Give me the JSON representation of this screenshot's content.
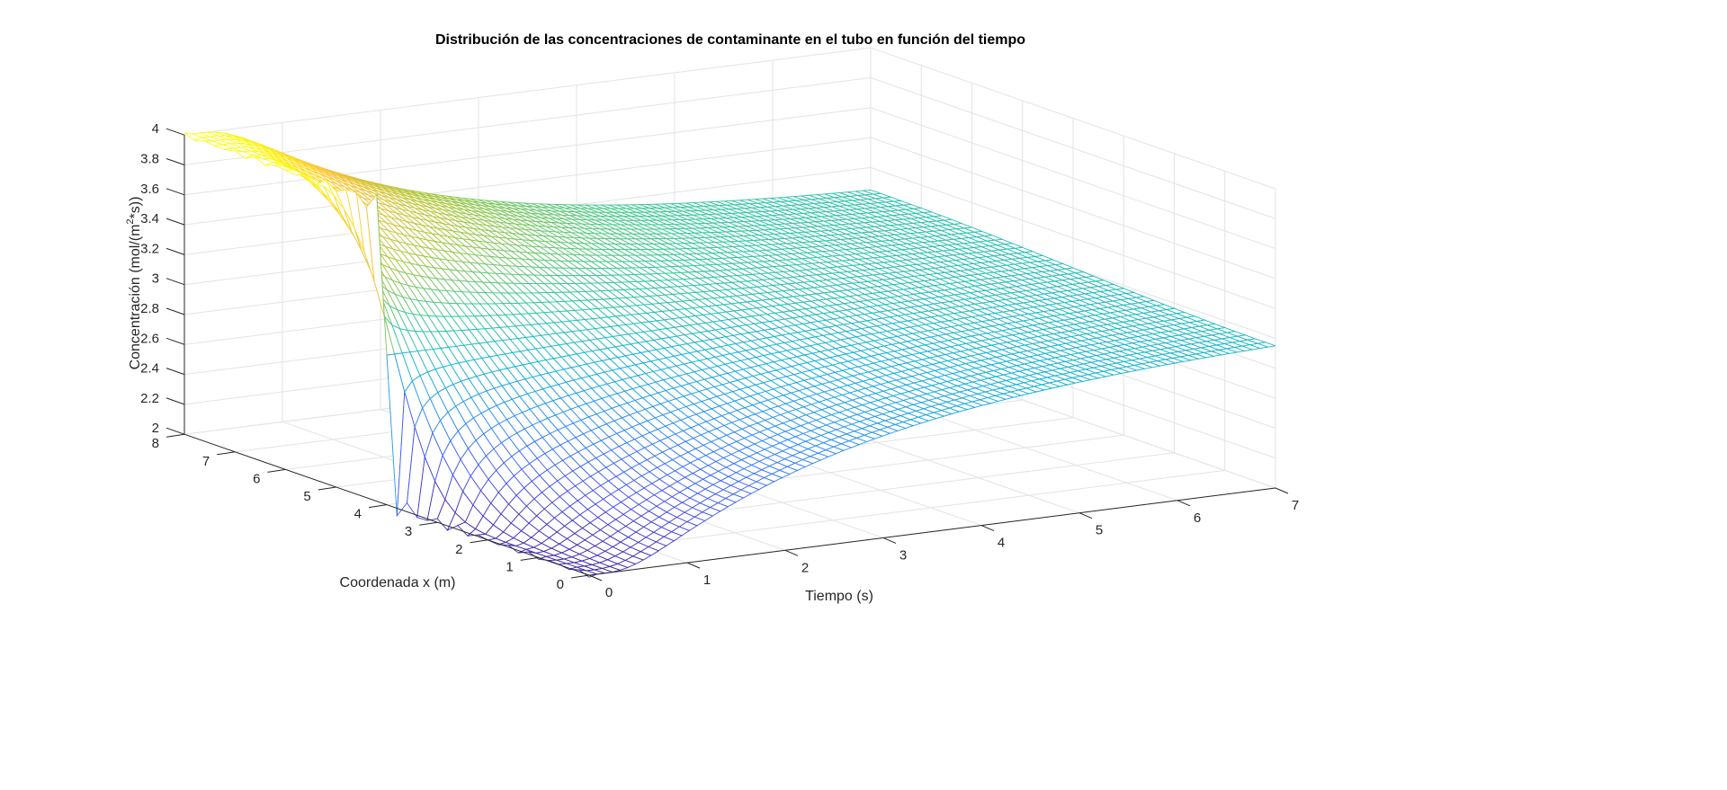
{
  "chart_data": {
    "type": "mesh",
    "title": "Distribución de las concentraciones de contaminante en el tubo en función del tiempo",
    "xlabel": "Tiempo (s)",
    "ylabel": "Coordenada x (m)",
    "zlabel": "Concentración (mol/(m²*s))",
    "zlabel_base": "Concentración (mol/(m",
    "zlabel_sup": "2",
    "zlabel_end": "*s))",
    "t_lim": [
      0,
      7
    ],
    "x_lim": [
      0,
      8
    ],
    "z_lim": [
      2,
      4
    ],
    "t_ticks": [
      "0",
      "1",
      "2",
      "3",
      "4",
      "5",
      "6",
      "7"
    ],
    "x_ticks": [
      "0",
      "1",
      "2",
      "3",
      "4",
      "5",
      "6",
      "7",
      "8"
    ],
    "z_ticks": [
      "2",
      "2.2",
      "2.4",
      "2.6",
      "2.8",
      "3",
      "3.2",
      "3.4",
      "3.6",
      "3.8",
      "4"
    ],
    "initial_profile": {
      "x_below_4": 2,
      "x_above_4": 4
    },
    "steady_value": 3,
    "colormap": "parula",
    "grid": true
  }
}
